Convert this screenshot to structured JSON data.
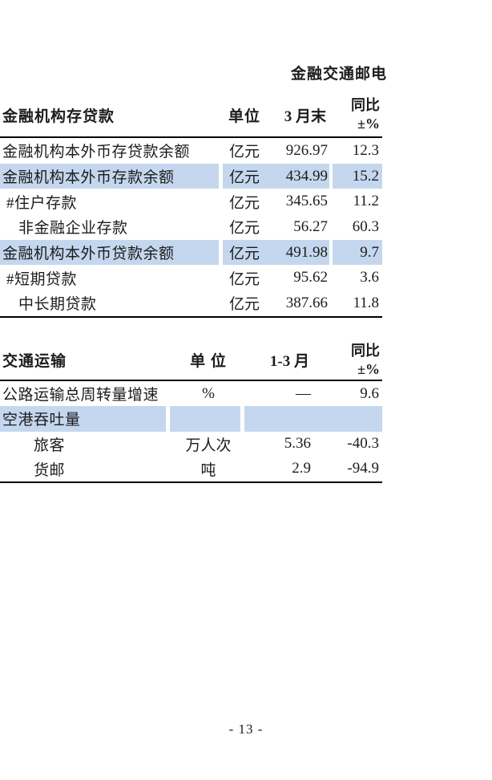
{
  "page": {
    "section_title": "金融交通邮电",
    "page_number": "- 13 -"
  },
  "colors": {
    "highlight": "#c4d7ee",
    "text": "#1c1c1c"
  },
  "tables": [
    {
      "header": {
        "title": "金融机构存贷款",
        "unit": "单位",
        "period": "3 月末",
        "yoy_line1": "同比",
        "yoy_line2": "±%"
      },
      "rows": [
        {
          "label": "金融机构本外币存贷款余额",
          "unit": "亿元",
          "value": "926.97",
          "yoy": "12.3",
          "highlight": false,
          "indent": 0
        },
        {
          "label": "金融机构本外币存款余额",
          "unit": "亿元",
          "value": "434.99",
          "yoy": "15.2",
          "highlight": true,
          "indent": 0
        },
        {
          "label": "#住户存款",
          "unit": "亿元",
          "value": "345.65",
          "yoy": "11.2",
          "highlight": false,
          "indent": 1
        },
        {
          "label": "非金融企业存款",
          "unit": "亿元",
          "value": "56.27",
          "yoy": "60.3",
          "highlight": false,
          "indent": 2
        },
        {
          "label": "金融机构本外币贷款余额",
          "unit": "亿元",
          "value": "491.98",
          "yoy": "9.7",
          "highlight": true,
          "indent": 0
        },
        {
          "label": "#短期贷款",
          "unit": "亿元",
          "value": "95.62",
          "yoy": "3.6",
          "highlight": false,
          "indent": 1
        },
        {
          "label": "中长期贷款",
          "unit": "亿元",
          "value": "387.66",
          "yoy": "11.8",
          "highlight": false,
          "indent": 2
        }
      ]
    },
    {
      "header": {
        "title": "交通运输",
        "unit": "单 位",
        "period": "1-3 月",
        "yoy_line1": "同比",
        "yoy_line2": "±%"
      },
      "rows": [
        {
          "label": "公路运输总周转量增速",
          "unit": "%",
          "value": "—",
          "yoy": "9.6",
          "highlight": false,
          "indent": 0
        },
        {
          "label": "空港吞吐量",
          "unit": "",
          "value": "",
          "yoy": "",
          "highlight": true,
          "indent": 0
        },
        {
          "label": "旅客",
          "unit": "万人次",
          "value": "5.36",
          "yoy": "-40.3",
          "highlight": false,
          "indent": 3
        },
        {
          "label": "货邮",
          "unit": "吨",
          "value": "2.9",
          "yoy": "-94.9",
          "highlight": false,
          "indent": 3
        }
      ]
    }
  ]
}
